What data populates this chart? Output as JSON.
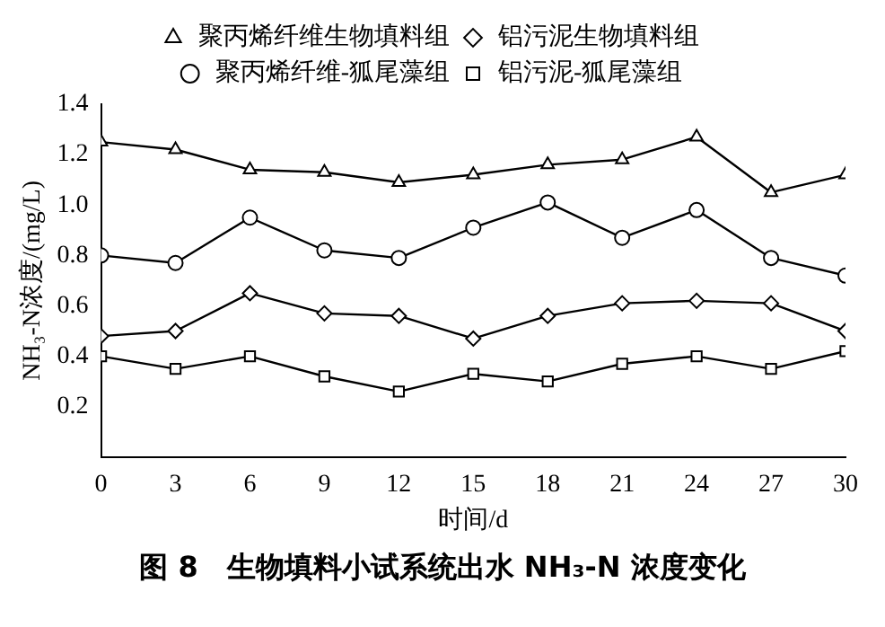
{
  "chart_data": {
    "type": "line",
    "xlabel": "时间/d",
    "ylabel": "NH₃-N浓度/(mg/L)",
    "x": [
      0,
      3,
      6,
      9,
      12,
      15,
      18,
      21,
      24,
      27,
      30
    ],
    "xlim": [
      0,
      30
    ],
    "xticks": [
      0,
      3,
      6,
      9,
      12,
      15,
      18,
      21,
      24,
      27,
      30
    ],
    "ylim": [
      0,
      1.4
    ],
    "yticks": [
      0.2,
      0.4,
      0.6,
      0.8,
      {
        "value": 1,
        "label": "1.0"
      },
      1.2,
      1.4
    ],
    "grid": false,
    "legend": "top",
    "line_style": "solid",
    "series": [
      {
        "name": "聚丙烯纤维生物填料组",
        "color": "#000000",
        "marker": "triangle",
        "values": [
          1.25,
          1.22,
          1.14,
          1.13,
          1.09,
          1.12,
          1.16,
          1.18,
          1.27,
          1.05,
          1.12
        ]
      },
      {
        "name": "铝污泥生物填料组",
        "color": "#000000",
        "marker": "diamond",
        "values": [
          0.48,
          0.5,
          0.65,
          0.57,
          0.56,
          0.47,
          0.56,
          0.61,
          0.62,
          0.61,
          0.5
        ]
      },
      {
        "name": "聚丙烯纤维-狐尾藻组",
        "color": "#000000",
        "marker": "circle",
        "values": [
          0.8,
          0.77,
          0.95,
          0.82,
          0.79,
          0.91,
          1.01,
          0.87,
          0.98,
          0.79,
          0.72
        ]
      },
      {
        "name": "铝污泥-狐尾藻组",
        "color": "#000000",
        "marker": "square",
        "values": [
          0.4,
          0.35,
          0.4,
          0.32,
          0.26,
          0.33,
          0.3,
          0.37,
          0.4,
          0.35,
          0.42
        ]
      }
    ],
    "annotations": [
      "图 8　生物填料小试系统出水 NH₃-N 浓度变化"
    ]
  }
}
